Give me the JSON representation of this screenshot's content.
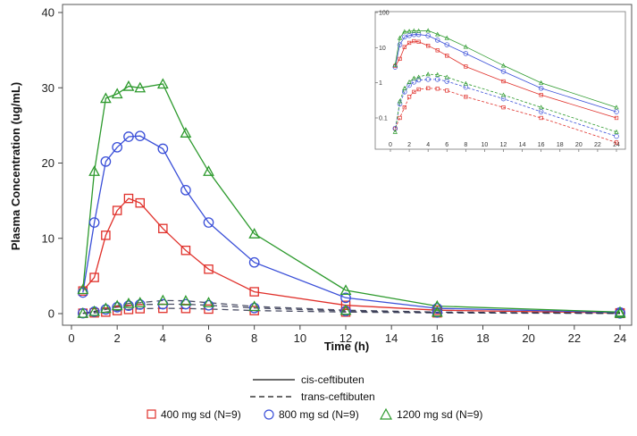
{
  "chart_data": {
    "type": "line",
    "xlabel": "Time (h)",
    "ylabel": "Plasma Concentration (ug/mL)",
    "xlim": [
      0,
      24
    ],
    "ylim": [
      0,
      40
    ],
    "xticks": [
      "0",
      "2",
      "4",
      "6",
      "8",
      "10",
      "12",
      "14",
      "16",
      "18",
      "20",
      "22",
      "24"
    ],
    "yticks": [
      "0",
      "10",
      "20",
      "30",
      "40"
    ],
    "x": [
      0.5,
      1,
      1.5,
      2,
      2.5,
      3,
      4,
      5,
      6,
      8,
      12,
      16,
      24
    ],
    "series": [
      {
        "name": "400 mg sd (N=9)",
        "isomer": "cis-ceftibuten",
        "color": "#e0302a",
        "marker": "square",
        "values": [
          3.0,
          4.8,
          10.4,
          13.7,
          15.3,
          14.7,
          11.3,
          8.4,
          5.9,
          2.9,
          1.1,
          0.45,
          0.1
        ]
      },
      {
        "name": "800 mg sd (N=9)",
        "isomer": "cis-ceftibuten",
        "color": "#3a4fd8",
        "marker": "circle",
        "values": [
          2.8,
          12.1,
          20.2,
          22.1,
          23.5,
          23.6,
          21.9,
          16.4,
          12.1,
          6.8,
          2.1,
          0.7,
          0.15
        ]
      },
      {
        "name": "1200 mg sd (N=9)",
        "isomer": "cis-ceftibuten",
        "color": "#2d9a2d",
        "marker": "triangle",
        "values": [
          3.2,
          18.9,
          28.6,
          29.2,
          30.2,
          30.0,
          30.5,
          24.0,
          18.9,
          10.6,
          3.1,
          1.0,
          0.2
        ]
      },
      {
        "name": "400 mg sd (N=9)",
        "isomer": "trans-ceftibuten",
        "color": "#e0302a",
        "marker": "square",
        "values": [
          0.05,
          0.1,
          0.2,
          0.4,
          0.55,
          0.65,
          0.7,
          0.68,
          0.6,
          0.4,
          0.2,
          0.1,
          0.02
        ]
      },
      {
        "name": "800 mg sd (N=9)",
        "isomer": "trans-ceftibuten",
        "color": "#3a4fd8",
        "marker": "circle",
        "values": [
          0.05,
          0.25,
          0.55,
          0.85,
          1.05,
          1.2,
          1.25,
          1.25,
          1.1,
          0.75,
          0.35,
          0.15,
          0.03
        ]
      },
      {
        "name": "1200 mg sd (N=9)",
        "isomer": "trans-ceftibuten",
        "color": "#2d9a2d",
        "marker": "triangle",
        "values": [
          0.04,
          0.3,
          0.7,
          1.05,
          1.35,
          1.45,
          1.75,
          1.7,
          1.45,
          0.95,
          0.45,
          0.2,
          0.04
        ]
      }
    ],
    "inset": {
      "scale": "log",
      "xticks": [
        "0",
        "2",
        "4",
        "6",
        "8",
        "10",
        "12",
        "14",
        "16",
        "18",
        "20",
        "22",
        "24"
      ],
      "yticks": [
        "0.1",
        "1",
        "10",
        "100"
      ],
      "yvalues": [
        0.1,
        1,
        10,
        100
      ]
    },
    "legend": {
      "line_styles": [
        {
          "label": "cis-ceftibuten",
          "style": "solid"
        },
        {
          "label": "trans-ceftibuten",
          "style": "dashed"
        }
      ],
      "groups": [
        {
          "label": "400 mg sd (N=9)",
          "color": "#e0302a",
          "marker": "square"
        },
        {
          "label": "800 mg sd (N=9)",
          "color": "#3a4fd8",
          "marker": "circle"
        },
        {
          "label": "1200 mg sd (N=9)",
          "color": "#2d9a2d",
          "marker": "triangle"
        }
      ]
    }
  }
}
